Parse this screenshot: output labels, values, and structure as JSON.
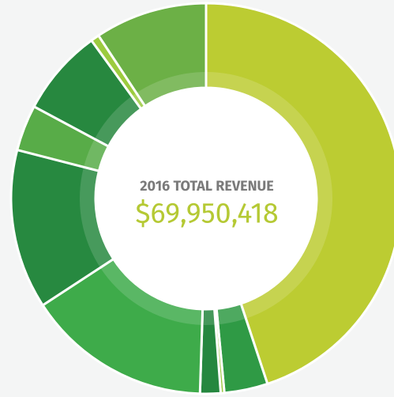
{
  "chart_data": {
    "type": "donut",
    "title": "2016 TOTAL REVENUE",
    "subtitle": "$69,950,418",
    "categories": [
      null,
      null,
      null,
      null,
      null,
      null,
      null,
      null,
      null,
      null
    ],
    "values": [
      44.9,
      3.6,
      0.3,
      1.7,
      15.3,
      13.2,
      3.8,
      7.2,
      0.7,
      9.3
    ],
    "colors": [
      "#bccc32",
      "#2f9a45",
      "#9cc63c",
      "#25873f",
      "#3eab4a",
      "#278940",
      "#58ac48",
      "#27883f",
      "#9ccb3f",
      "#6cb046"
    ]
  }
}
